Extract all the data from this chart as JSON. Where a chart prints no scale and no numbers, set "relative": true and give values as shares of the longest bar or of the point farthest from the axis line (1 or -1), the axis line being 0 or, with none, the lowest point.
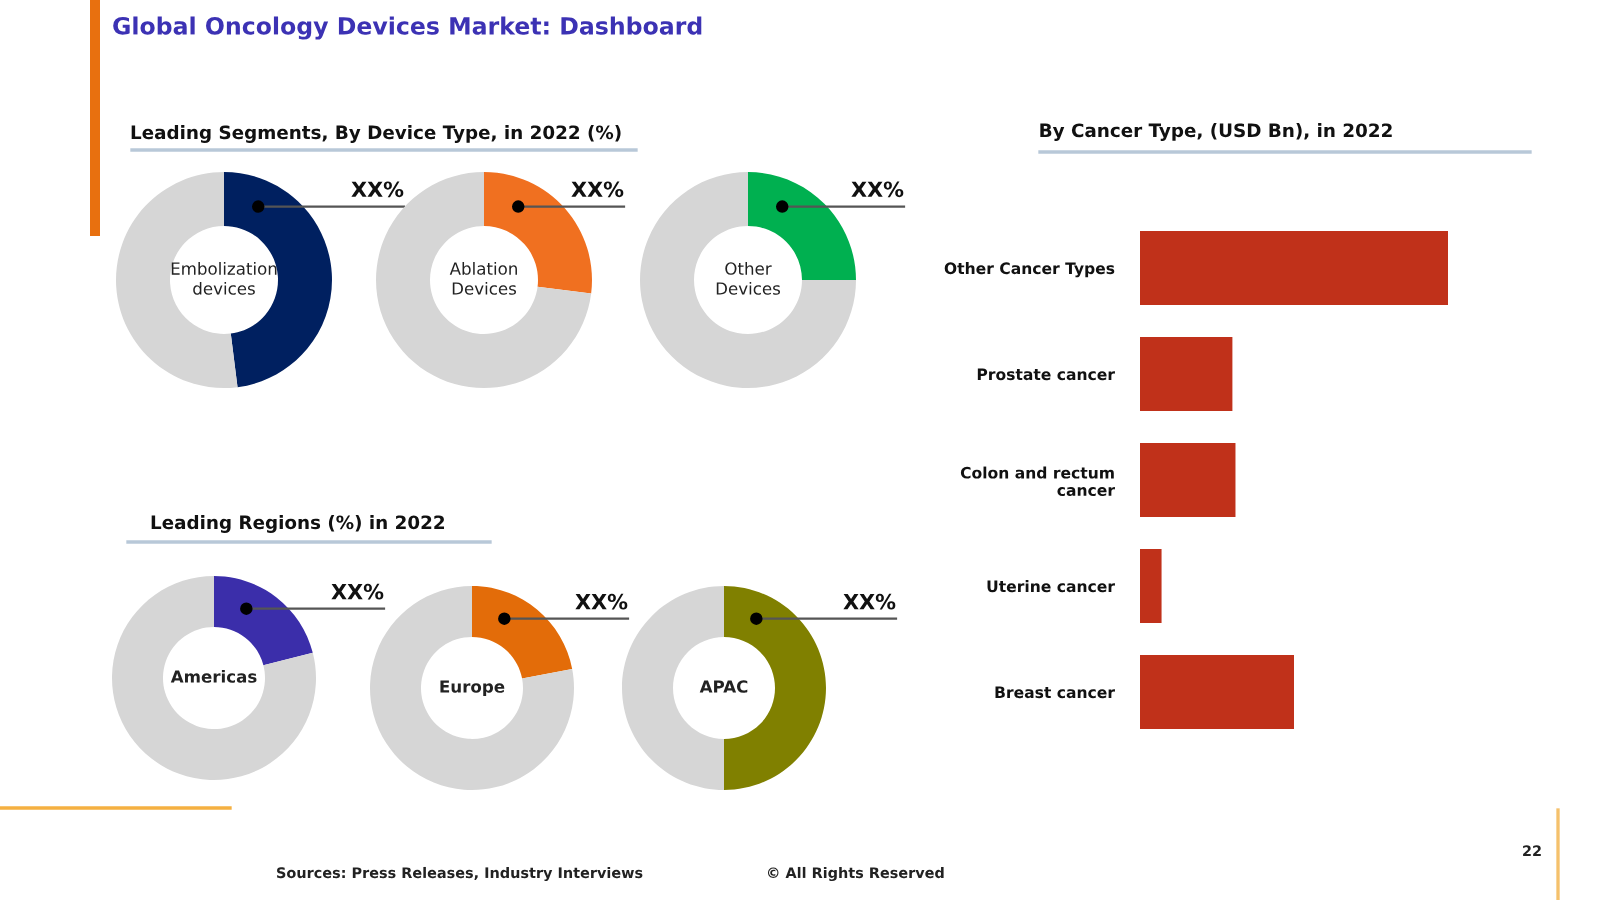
{
  "chart_data": [
    {
      "type": "other",
      "title": "Global Oncology Devices Market: Dashboard",
      "annotations": [
        "Sources: Press Releases, Industry Interviews",
        "© All Rights Reserved",
        "22"
      ]
    },
    {
      "type": "donut",
      "title": "Leading Segments, By Device Type, in 2022 (%)",
      "categories": [
        null,
        null
      ],
      "values": [
        48,
        52
      ],
      "annotations": [
        "Embolization devices"
      ],
      "colors": [
        "#002060",
        "#d6d6d6"
      ],
      "value_labels": [
        "XX%",
        null
      ]
    },
    {
      "type": "donut",
      "categories": [
        null,
        null
      ],
      "values": [
        27,
        73
      ],
      "annotations": [
        "Ablation Devices"
      ],
      "colors": [
        "#f07020",
        "#d6d6d6"
      ],
      "value_labels": [
        "XX%",
        null
      ]
    },
    {
      "type": "donut",
      "categories": [
        null,
        null
      ],
      "values": [
        25,
        75
      ],
      "annotations": [
        "Other Devices"
      ],
      "colors": [
        "#00b050",
        "#d6d6d6"
      ],
      "value_labels": [
        "XX%",
        null
      ]
    },
    {
      "type": "bar",
      "orientation": "horizontal",
      "relative": true,
      "title": "By Cancer Type, (USD Bn), in 2022",
      "categories": [
        "Other Cancer Types",
        "Prostate cancer",
        "Colon and rectum cancer",
        "Uterine cancer",
        "Breast cancer"
      ],
      "values": [
        1,
        0.3,
        0.31,
        0.07,
        0.5
      ],
      "color": "#c0311a"
    },
    {
      "type": "donut",
      "title": "Leading Regions (%) in 2022",
      "categories": [
        null,
        null
      ],
      "values": [
        21,
        79
      ],
      "annotations": [
        "Americas"
      ],
      "colors": [
        "#3b2eaa",
        "#d6d6d6"
      ],
      "value_labels": [
        "XX%",
        null
      ]
    },
    {
      "type": "donut",
      "categories": [
        null,
        null
      ],
      "values": [
        22,
        78
      ],
      "annotations": [
        "Europe"
      ],
      "colors": [
        "#e36c09",
        "#d6d6d6"
      ],
      "value_labels": [
        "XX%",
        null
      ]
    },
    {
      "type": "donut",
      "categories": [
        null,
        null
      ],
      "values": [
        50,
        50
      ],
      "annotations": [
        "APAC"
      ],
      "colors": [
        "#808000",
        "#d6d6d6"
      ],
      "value_labels": [
        "XX%",
        null
      ]
    }
  ]
}
